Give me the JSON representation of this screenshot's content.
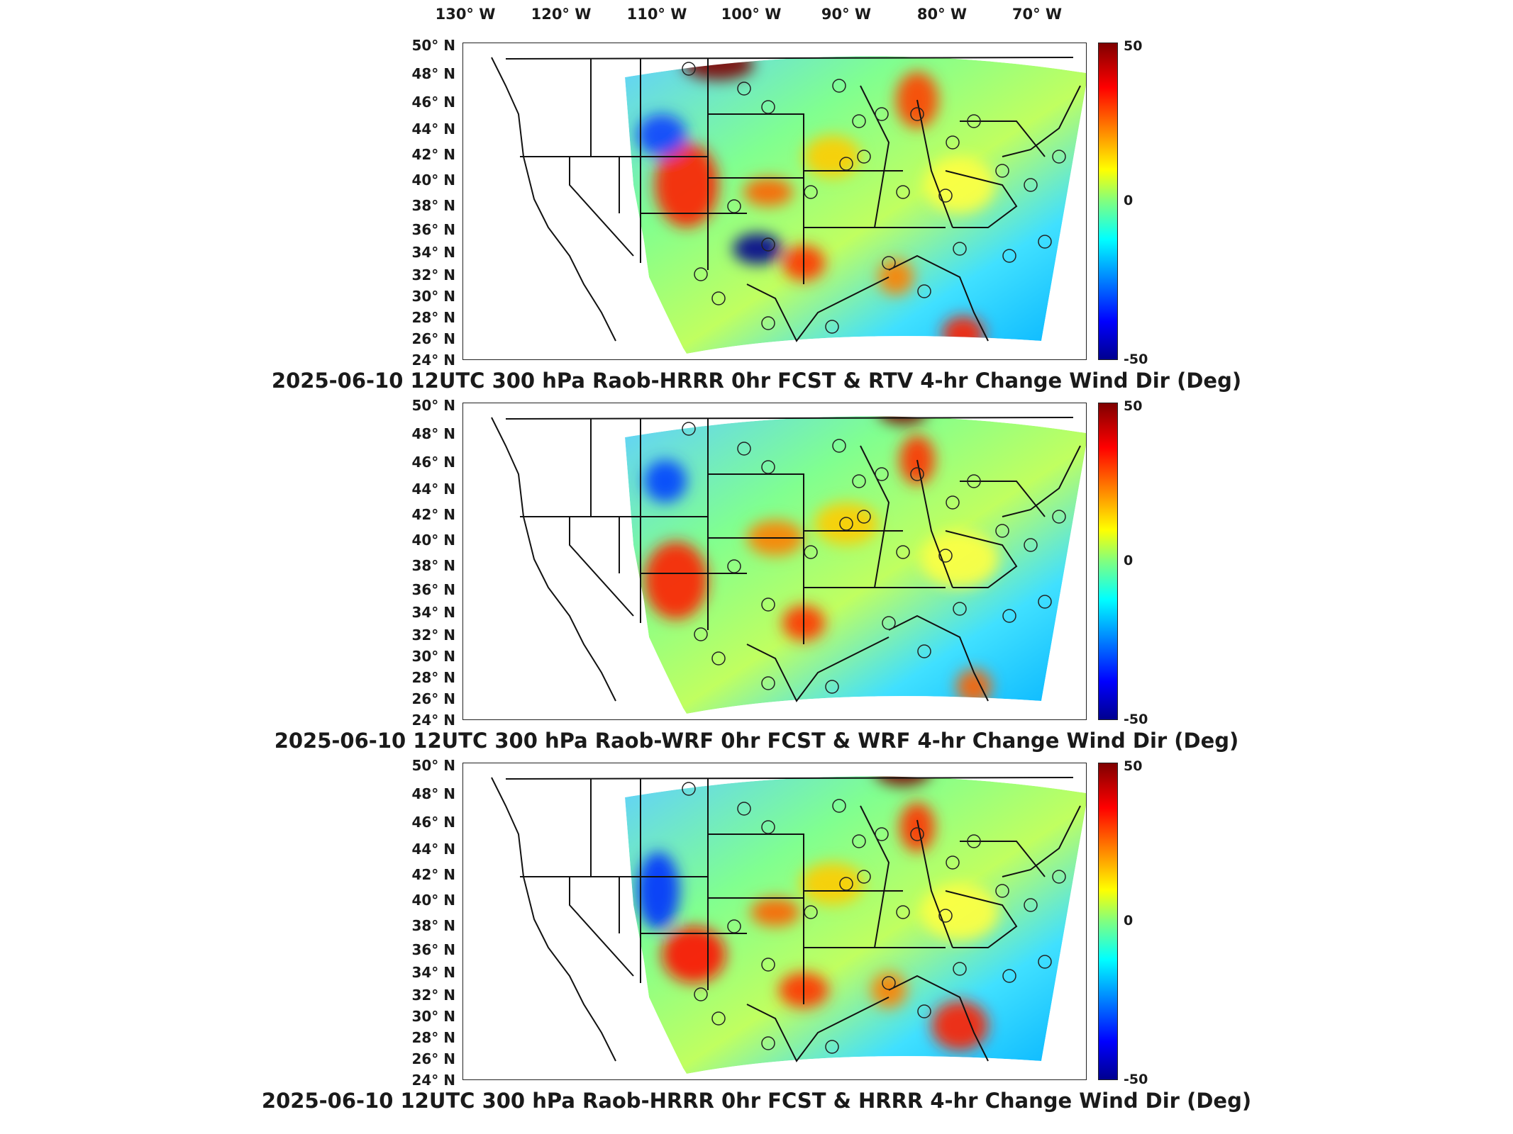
{
  "lon_labels": [
    "130° W",
    "120° W",
    "110° W",
    "100° W",
    "90° W",
    "80° W",
    "70° W"
  ],
  "lat_labels": [
    "50° N",
    "48° N",
    "46° N",
    "44° N",
    "42° N",
    "40° N",
    "38° N",
    "36° N",
    "34° N",
    "32° N",
    "30° N",
    "28° N",
    "26° N",
    "24° N"
  ],
  "colorbar": {
    "max_label": "50",
    "mid_label": "0",
    "min_label": "-50",
    "colors": [
      "#7f0000",
      "#ff0000",
      "#ff8000",
      "#ffff00",
      "#80ff80",
      "#00ffff",
      "#0080ff",
      "#0000ff",
      "#00008f"
    ]
  },
  "panels": [
    {
      "title": "2025-06-10 12UTC 300 hPa Raob-HRRR 0hr FCST & RTV 4-hr Change Wind Dir (Deg)"
    },
    {
      "title": "2025-06-10 12UTC 300 hPa Raob-WRF 0hr FCST & WRF 4-hr Change Wind Dir (Deg)"
    },
    {
      "title": "2025-06-10 12UTC 300 hPa Raob-HRRR 0hr FCST & HRRR 4-hr Change Wind Dir (Deg)"
    }
  ]
}
